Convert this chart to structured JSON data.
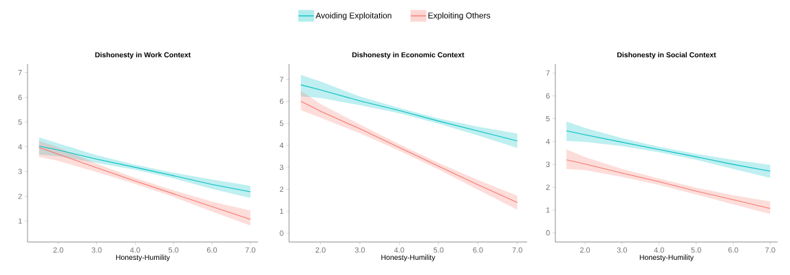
{
  "chart_data": [
    {
      "type": "line",
      "title": "Dishonesty in Work Context",
      "xlabel": "Honesty-Humility",
      "legend": "top",
      "x": [
        1.5,
        2,
        3,
        4,
        5,
        6,
        7
      ],
      "xlim": [
        1.2,
        7.2
      ],
      "xticks": [
        {
          "value": 2,
          "label": "2.0"
        },
        {
          "value": 3,
          "label": "3.0"
        },
        {
          "value": 4,
          "label": "4.0"
        },
        {
          "value": 5,
          "label": "5.0"
        },
        {
          "value": 6,
          "label": "6.0"
        },
        {
          "value": 7,
          "label": "7.0"
        }
      ],
      "ylim": [
        0.15,
        7.35
      ],
      "yticks": [
        1,
        2,
        3,
        4,
        5,
        6,
        7
      ],
      "series": [
        {
          "name": "Avoiding Exploitation",
          "color": "#00bfc4",
          "values": [
            4.03,
            3.87,
            3.5,
            3.17,
            2.83,
            2.48,
            2.18
          ],
          "lower": [
            3.69,
            3.62,
            3.35,
            3.07,
            2.72,
            2.3,
            1.93
          ],
          "upper": [
            4.38,
            4.14,
            3.66,
            3.28,
            2.95,
            2.68,
            2.42
          ]
        },
        {
          "name": "Exploiting Others",
          "color": "#f8766d",
          "values": [
            3.97,
            3.7,
            3.15,
            2.62,
            2.1,
            1.58,
            1.07
          ],
          "lower": [
            3.6,
            3.43,
            2.98,
            2.5,
            1.97,
            1.38,
            0.82
          ],
          "upper": [
            4.24,
            3.97,
            3.32,
            2.74,
            2.24,
            1.78,
            1.42
          ]
        }
      ]
    },
    {
      "type": "line",
      "title": "Dishonesty in Economic Context",
      "xlabel": "Honesty-Humility",
      "x": [
        1.5,
        2,
        3,
        4,
        5,
        6,
        7
      ],
      "xlim": [
        1.2,
        7.25
      ],
      "xticks": [
        {
          "value": 2,
          "label": "2.0"
        },
        {
          "value": 3,
          "label": "3.0"
        },
        {
          "value": 4,
          "label": "4.0"
        },
        {
          "value": 5,
          "label": "5.0"
        },
        {
          "value": 6,
          "label": "6.0"
        },
        {
          "value": 7,
          "label": "7.0"
        }
      ],
      "ylim": [
        -0.4,
        7.7
      ],
      "yticks": [
        0,
        1,
        2,
        3,
        4,
        5,
        6,
        7
      ],
      "series": [
        {
          "color": "#00bfc4",
          "values": [
            6.75,
            6.52,
            6.02,
            5.58,
            5.1,
            4.65,
            4.2
          ],
          "lower": [
            6.22,
            6.15,
            5.82,
            5.46,
            4.98,
            4.45,
            3.88
          ],
          "upper": [
            7.2,
            6.9,
            6.22,
            5.7,
            5.22,
            4.85,
            4.53
          ]
        },
        {
          "color": "#f8766d",
          "values": [
            6.0,
            5.55,
            4.75,
            3.9,
            3.05,
            2.2,
            1.4
          ],
          "lower": [
            5.6,
            5.25,
            4.55,
            3.75,
            2.9,
            1.98,
            1.07
          ],
          "upper": [
            6.48,
            5.88,
            4.95,
            4.05,
            3.2,
            2.42,
            1.7
          ]
        }
      ]
    },
    {
      "type": "line",
      "title": "Dishonesty in Social Context",
      "xlabel": "Honesty-Humility",
      "x": [
        1.5,
        2,
        3,
        4,
        5,
        6,
        7
      ],
      "xlim": [
        1.2,
        7.2
      ],
      "xticks": [
        {
          "value": 2,
          "label": "2.0"
        },
        {
          "value": 3,
          "label": "3.0"
        },
        {
          "value": 4,
          "label": "4.0"
        },
        {
          "value": 5,
          "label": "5.0"
        },
        {
          "value": 6,
          "label": "6.0"
        },
        {
          "value": 7,
          "label": "7.0"
        }
      ],
      "ylim": [
        -0.4,
        7.4
      ],
      "yticks": [
        0,
        1,
        2,
        3,
        4,
        5,
        6,
        7
      ],
      "series": [
        {
          "color": "#00bfc4",
          "values": [
            4.47,
            4.3,
            3.97,
            3.65,
            3.33,
            3.0,
            2.7
          ],
          "lower": [
            4.03,
            3.98,
            3.8,
            3.53,
            3.2,
            2.8,
            2.41
          ],
          "upper": [
            4.88,
            4.6,
            4.15,
            3.77,
            3.46,
            3.2,
            2.98
          ]
        },
        {
          "color": "#f8766d",
          "values": [
            3.2,
            3.02,
            2.62,
            2.24,
            1.83,
            1.45,
            1.07
          ],
          "lower": [
            2.8,
            2.75,
            2.45,
            2.1,
            1.68,
            1.25,
            0.83
          ],
          "upper": [
            3.66,
            3.32,
            2.8,
            2.38,
            1.98,
            1.65,
            1.38
          ]
        }
      ]
    }
  ]
}
